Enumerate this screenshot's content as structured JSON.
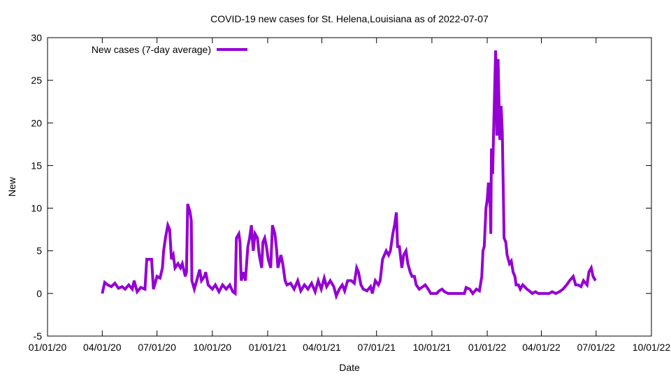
{
  "chart_data": {
    "type": "line",
    "title": "COVID-19 new cases for St. Helena,Louisiana as of 2022-07-07",
    "xlabel": "Date",
    "ylabel": "New",
    "x_unit": "days since 2020-01-01",
    "xlim": [
      0,
      1004
    ],
    "ylim": [
      -5,
      30
    ],
    "grid": false,
    "legend_position": "top-left",
    "x_ticks": [
      {
        "value": 0,
        "label": "01/01/20"
      },
      {
        "value": 91,
        "label": "04/01/20"
      },
      {
        "value": 182,
        "label": "07/01/20"
      },
      {
        "value": 274,
        "label": "10/01/20"
      },
      {
        "value": 366,
        "label": "01/01/21"
      },
      {
        "value": 456,
        "label": "04/01/21"
      },
      {
        "value": 547,
        "label": "07/01/21"
      },
      {
        "value": 639,
        "label": "10/01/21"
      },
      {
        "value": 731,
        "label": "01/01/22"
      },
      {
        "value": 821,
        "label": "04/01/22"
      },
      {
        "value": 912,
        "label": "07/01/22"
      },
      {
        "value": 1004,
        "label": "10/01/22"
      }
    ],
    "y_ticks": [
      {
        "value": -5,
        "label": "-5"
      },
      {
        "value": 0,
        "label": "0"
      },
      {
        "value": 5,
        "label": "5"
      },
      {
        "value": 10,
        "label": "10"
      },
      {
        "value": 15,
        "label": "15"
      },
      {
        "value": 20,
        "label": "20"
      },
      {
        "value": 25,
        "label": "25"
      },
      {
        "value": 30,
        "label": "30"
      }
    ],
    "series": [
      {
        "name": "New cases (7-day average)",
        "color": "#9400d3",
        "x": [
          91,
          95,
          100,
          106,
          112,
          118,
          124,
          129,
          135,
          141,
          144,
          149,
          155,
          162,
          165,
          173,
          176,
          179,
          182,
          187,
          191,
          193,
          196,
          200,
          203,
          206,
          209,
          212,
          217,
          221,
          224,
          229,
          231,
          233,
          237,
          239,
          240,
          244,
          248,
          253,
          256,
          261,
          263,
          267,
          274,
          279,
          285,
          291,
          297,
          303,
          308,
          312,
          314,
          318,
          320,
          322,
          326,
          329,
          333,
          336,
          339,
          342,
          345,
          349,
          352,
          356,
          358,
          361,
          364,
          367,
          371,
          374,
          378,
          381,
          383,
          388,
          391,
          395,
          398,
          404,
          410,
          416,
          421,
          427,
          433,
          439,
          445,
          450,
          455,
          460,
          464,
          470,
          476,
          480,
          485,
          490,
          494,
          499,
          505,
          510,
          514,
          517,
          521,
          525,
          531,
          537,
          540,
          545,
          550,
          553,
          557,
          560,
          563,
          567,
          570,
          574,
          577,
          580,
          582,
          585,
          589,
          592,
          596,
          599,
          603,
          606,
          610,
          613,
          618,
          624,
          628,
          633,
          637,
          647,
          651,
          656,
          660,
          666,
          693,
          696,
          702,
          707,
          713,
          718,
          722,
          724,
          726,
          729,
          731,
          733,
          736,
          737,
          738,
          740,
          742,
          745,
          747,
          749,
          752,
          754,
          756,
          759,
          762,
          764,
          768,
          771,
          774,
          777,
          779,
          783,
          786,
          790,
          793,
          797,
          801,
          806,
          811,
          816,
          834,
          839,
          845,
          851,
          857,
          863,
          868,
          874,
          878,
          882,
          887,
          891,
          897,
          900,
          904,
          907,
          911
        ],
        "y": [
          0,
          1.3,
          1.0,
          0.8,
          1.2,
          0.6,
          0.8,
          0.5,
          1.0,
          0.5,
          1.5,
          0.2,
          0.7,
          0.5,
          4.0,
          4.0,
          0.5,
          1.2,
          2.0,
          1.8,
          3.0,
          5.0,
          6.5,
          8.0,
          7.5,
          4.0,
          4.5,
          3.0,
          3.5,
          3.0,
          3.5,
          2.0,
          2.5,
          10.5,
          9.5,
          8.5,
          1.5,
          0.5,
          1.5,
          2.8,
          1.5,
          2.0,
          2.5,
          1.0,
          0.5,
          1.0,
          0.2,
          1.0,
          0.5,
          1.0,
          0.2,
          0.0,
          6.5,
          7.0,
          6.0,
          1.5,
          2.5,
          1.5,
          5.5,
          6.5,
          8.0,
          5.0,
          7.0,
          6.5,
          4.5,
          3.0,
          6.0,
          6.5,
          5.5,
          4.0,
          3.0,
          8.0,
          7.0,
          5.0,
          3.0,
          4.5,
          3.5,
          1.5,
          1.0,
          1.2,
          0.5,
          1.5,
          0.3,
          1.0,
          0.5,
          1.2,
          0.2,
          1.5,
          0.5,
          1.8,
          0.8,
          1.5,
          0.8,
          -0.3,
          0.5,
          1.0,
          0.3,
          1.5,
          1.5,
          1.2,
          3.0,
          2.5,
          1.0,
          0.5,
          0.3,
          0.8,
          0.0,
          1.5,
          1.0,
          1.5,
          4.0,
          4.5,
          5.0,
          4.5,
          5.0,
          7.0,
          8.0,
          9.5,
          5.5,
          5.5,
          3.0,
          4.5,
          5.0,
          3.5,
          2.5,
          2.0,
          2.0,
          1.0,
          0.5,
          0.8,
          1.0,
          0.5,
          0.0,
          0.0,
          0.3,
          0.5,
          0.2,
          0.0,
          0.0,
          0.7,
          0.5,
          0.0,
          0.5,
          0.3,
          2.0,
          5.0,
          5.5,
          10.0,
          11.0,
          13.0,
          10.0,
          7.0,
          17.0,
          14.0,
          20.0,
          28.5,
          18.5,
          27.5,
          18.0,
          22.0,
          19.0,
          6.5,
          6.0,
          4.5,
          3.5,
          3.8,
          2.5,
          2.0,
          1.0,
          1.0,
          0.5,
          1.0,
          0.8,
          0.5,
          0.3,
          0.0,
          0.2,
          0.0,
          0.0,
          0.2,
          0.0,
          0.2,
          0.5,
          1.0,
          1.5,
          2.0,
          1.0,
          1.0,
          0.8,
          1.5,
          1.0,
          2.5,
          3.0,
          2.0,
          1.5
        ]
      }
    ]
  }
}
